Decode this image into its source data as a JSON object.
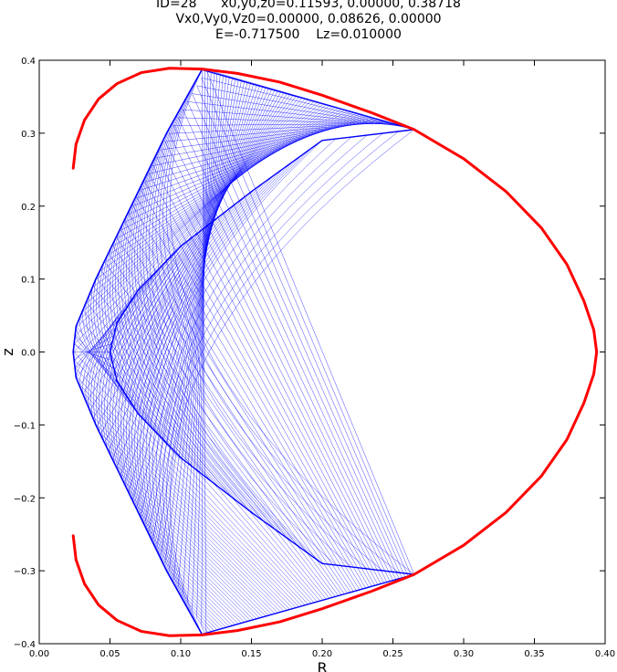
{
  "chart_data": {
    "type": "line",
    "title_lines": [
      "ID=28      x0,y0,z0=0.11593, 0.00000, 0.38718",
      "Vx0,Vy0,Vz0=0.00000, 0.08626, 0.00000",
      "E=-0.717500    Lz=0.010000"
    ],
    "xlabel": "R",
    "ylabel": "z",
    "xlim": [
      0.0,
      0.4
    ],
    "ylim": [
      -0.4,
      0.4
    ],
    "x_ticks": [
      "0.00",
      "0.05",
      "0.10",
      "0.15",
      "0.20",
      "0.25",
      "0.30",
      "0.35",
      "0.40"
    ],
    "y_ticks": [
      "−0.4",
      "−0.3",
      "−0.2",
      "−0.1",
      "0.0",
      "0.1",
      "0.2",
      "0.3",
      "0.4"
    ],
    "grid": false,
    "series": [
      {
        "role": "zero-velocity-curve",
        "color": "#ff0000",
        "points": [
          [
            0.024,
            0.252
          ],
          [
            0.026,
            0.285
          ],
          [
            0.032,
            0.318
          ],
          [
            0.042,
            0.347
          ],
          [
            0.055,
            0.368
          ],
          [
            0.072,
            0.383
          ],
          [
            0.092,
            0.389
          ],
          [
            0.115,
            0.388
          ],
          [
            0.14,
            0.382
          ],
          [
            0.17,
            0.37
          ],
          [
            0.2,
            0.352
          ],
          [
            0.235,
            0.328
          ],
          [
            0.265,
            0.305
          ],
          [
            0.3,
            0.265
          ],
          [
            0.33,
            0.22
          ],
          [
            0.355,
            0.17
          ],
          [
            0.373,
            0.12
          ],
          [
            0.385,
            0.07
          ],
          [
            0.392,
            0.03
          ],
          [
            0.394,
            0.0
          ],
          [
            0.392,
            -0.03
          ],
          [
            0.385,
            -0.07
          ],
          [
            0.373,
            -0.12
          ],
          [
            0.355,
            -0.17
          ],
          [
            0.33,
            -0.22
          ],
          [
            0.3,
            -0.265
          ],
          [
            0.265,
            -0.305
          ],
          [
            0.235,
            -0.328
          ],
          [
            0.2,
            -0.352
          ],
          [
            0.17,
            -0.37
          ],
          [
            0.14,
            -0.382
          ],
          [
            0.115,
            -0.388
          ],
          [
            0.092,
            -0.389
          ],
          [
            0.072,
            -0.383
          ],
          [
            0.055,
            -0.368
          ],
          [
            0.042,
            -0.347
          ],
          [
            0.032,
            -0.318
          ],
          [
            0.026,
            -0.285
          ],
          [
            0.024,
            -0.252
          ]
        ]
      },
      {
        "role": "orbit",
        "color": "#0000ff",
        "start": [
          0.11593,
          0.38718
        ],
        "envelope_corners": [
          [
            0.115,
            0.387
          ],
          [
            0.265,
            0.305
          ],
          [
            0.115,
            -0.387
          ],
          [
            0.265,
            -0.305
          ]
        ],
        "inner_edge_points": [
          [
            0.2,
            0.29
          ],
          [
            0.15,
            0.22
          ],
          [
            0.1,
            0.145
          ],
          [
            0.07,
            0.085
          ],
          [
            0.055,
            0.04
          ],
          [
            0.05,
            0.0
          ],
          [
            0.055,
            -0.04
          ],
          [
            0.07,
            -0.085
          ],
          [
            0.1,
            -0.145
          ],
          [
            0.15,
            -0.22
          ],
          [
            0.2,
            -0.29
          ]
        ],
        "outer_edge_points": [
          [
            0.115,
            0.387
          ],
          [
            0.09,
            0.3
          ],
          [
            0.065,
            0.2
          ],
          [
            0.04,
            0.1
          ],
          [
            0.026,
            0.035
          ],
          [
            0.024,
            0.0
          ],
          [
            0.026,
            -0.035
          ],
          [
            0.04,
            -0.1
          ],
          [
            0.065,
            -0.2
          ],
          [
            0.09,
            -0.3
          ],
          [
            0.115,
            -0.387
          ]
        ]
      }
    ]
  }
}
